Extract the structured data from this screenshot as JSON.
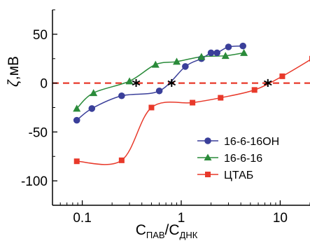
{
  "chart_data": {
    "type": "scatter",
    "x_scale": "log",
    "xlim": [
      0.05,
      20
    ],
    "ylim": [
      -125,
      75
    ],
    "x_ticks": [
      {
        "value": 0.1,
        "label": "0.1"
      },
      {
        "value": 1,
        "label": "1"
      },
      {
        "value": 10,
        "label": "10"
      }
    ],
    "y_ticks": [
      {
        "value": 50,
        "label": "50"
      },
      {
        "value": 0,
        "label": "0"
      },
      {
        "value": -50,
        "label": "-50"
      },
      {
        "value": -100,
        "label": "-100"
      }
    ],
    "xlabel": {
      "main": "C",
      "sub1": "ПАВ",
      "sep": "/C",
      "sub2": "ДНК"
    },
    "ylabel": {
      "symbol": "ζ",
      "unit": ",мВ"
    },
    "legend_position": "right",
    "reference_line": {
      "y": 0,
      "color": "#e8392a",
      "style": "dashed"
    },
    "markers_star": [
      0.35,
      0.8,
      7.5
    ],
    "series": [
      {
        "name": "16-6-16OH",
        "marker": "circle",
        "color": "#3a3f9a",
        "x": [
          0.088,
          0.125,
          0.25,
          0.6,
          1.1,
          1.6,
          2.0,
          2.3,
          3.0,
          4.2
        ],
        "y": [
          -38,
          -26,
          -13,
          -8,
          17,
          25,
          31,
          31,
          37,
          38
        ]
      },
      {
        "name": "16-6-16",
        "marker": "triangle",
        "color": "#2a8b3a",
        "x": [
          0.088,
          0.13,
          0.3,
          0.55,
          0.9,
          1.6,
          2.8,
          4.3
        ],
        "y": [
          -26,
          -10,
          2,
          19,
          22,
          27,
          28,
          31
        ]
      },
      {
        "name": "ЦТАБ",
        "marker": "square",
        "color": "#e8392a",
        "x": [
          0.088,
          0.25,
          0.5,
          1.3,
          2.5,
          5.5,
          10.5,
          21
        ],
        "y": [
          -80,
          -79,
          -25,
          -20,
          -15,
          -7,
          7,
          25
        ]
      }
    ]
  }
}
